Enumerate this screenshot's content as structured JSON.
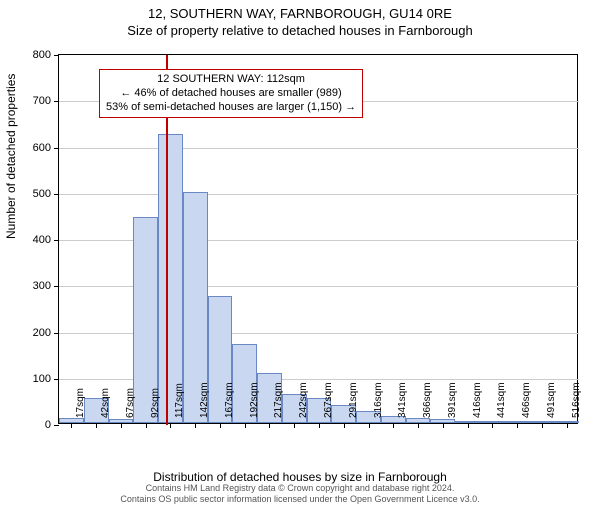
{
  "title_main": "12, SOUTHERN WAY, FARNBOROUGH, GU14 0RE",
  "title_sub": "Size of property relative to detached houses in Farnborough",
  "chart": {
    "type": "histogram",
    "ylabel": "Number of detached properties",
    "xlabel": "Distribution of detached houses by size in Farnborough",
    "ylim": [
      0,
      800
    ],
    "ytick_step": 100,
    "yticks": [
      0,
      100,
      200,
      300,
      400,
      500,
      600,
      700,
      800
    ],
    "xtick_labels": [
      "17sqm",
      "42sqm",
      "67sqm",
      "92sqm",
      "117sqm",
      "142sqm",
      "167sqm",
      "192sqm",
      "217sqm",
      "242sqm",
      "267sqm",
      "291sqm",
      "316sqm",
      "341sqm",
      "366sqm",
      "391sqm",
      "416sqm",
      "441sqm",
      "466sqm",
      "491sqm",
      "516sqm"
    ],
    "bar_values": [
      10,
      55,
      8,
      445,
      625,
      500,
      275,
      170,
      108,
      62,
      55,
      38,
      25,
      15,
      11,
      8,
      5,
      5,
      4,
      3,
      3
    ],
    "bar_color": "#c9d8f0",
    "bar_border_color": "#6a89c4",
    "background_color": "#ffffff",
    "grid_color": "#cccccc",
    "axis_color": "#000000",
    "tick_fontsize": 11,
    "label_fontsize": 12,
    "marker": {
      "value_sqm": 112,
      "line_color": "#c00000"
    },
    "annotation": {
      "border_color": "#c00000",
      "bg_color": "#ffffff",
      "line1": "12 SOUTHERN WAY: 112sqm",
      "line2": "← 46% of detached houses are smaller (989)",
      "line3": "53% of semi-detached houses are larger (1,150) →"
    }
  },
  "footer": {
    "line1": "Contains HM Land Registry data © Crown copyright and database right 2024.",
    "line2": "Contains OS public sector information licensed under the Open Government Licence v3.0."
  }
}
